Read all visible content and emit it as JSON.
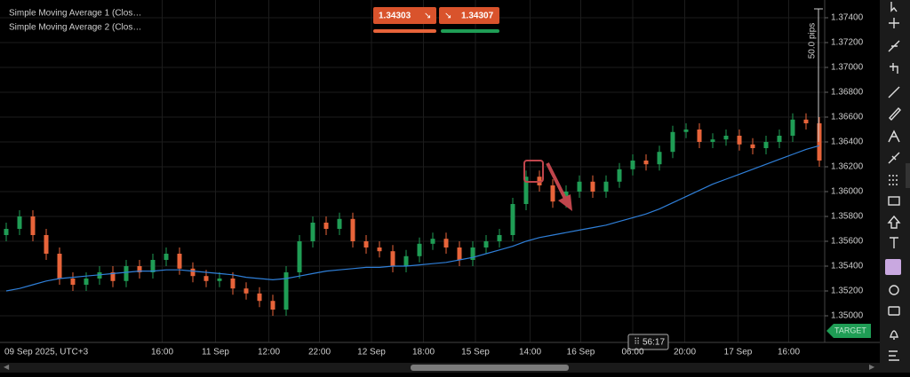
{
  "toolbar": {
    "sell_price": "1.34303",
    "buy_price": "1.34307"
  },
  "ruler_label": "50.0 pips",
  "timer": "56:17",
  "target_label": "TARGET",
  "chart_data": {
    "type": "candlestick",
    "legend": [
      "Simple Moving Average 1 (Clos…",
      "Simple Moving Average 2 (Clos…"
    ],
    "x_start_label": "09 Sep 2025, UTC+3",
    "up_color": "#1f9d55",
    "down_color": "#e8643a",
    "open": [
      1.3565,
      1.357,
      1.358,
      1.3565,
      1.355,
      1.353,
      1.3525,
      1.353,
      1.3535,
      1.3528,
      1.354,
      1.3535,
      1.3545,
      1.355,
      1.3538,
      1.3532,
      1.3528,
      1.353,
      1.3522,
      1.3518,
      1.3512,
      1.3505,
      1.3535,
      1.356,
      1.3575,
      1.357,
      1.3578,
      1.356,
      1.3555,
      1.3552,
      1.354,
      1.3548,
      1.3558,
      1.3562,
      1.3555,
      1.3545,
      1.3555,
      1.356,
      1.3565,
      1.359,
      1.3612,
      1.3605,
      1.3592,
      1.36,
      1.3608,
      1.36,
      1.3608,
      1.3618,
      1.3625,
      1.3622,
      1.3632,
      1.3648,
      1.365,
      1.364,
      1.3642,
      1.3645,
      1.3638,
      1.3635,
      1.364,
      1.3645,
      1.3658,
      1.3655
    ],
    "high": [
      1.3575,
      1.3585,
      1.3585,
      1.357,
      1.3555,
      1.3535,
      1.3535,
      1.354,
      1.354,
      1.3545,
      1.3545,
      1.355,
      1.3555,
      1.3555,
      1.3543,
      1.3537,
      1.3535,
      1.3535,
      1.3527,
      1.3523,
      1.3517,
      1.354,
      1.3565,
      1.358,
      1.358,
      1.3583,
      1.3583,
      1.3565,
      1.356,
      1.3557,
      1.3553,
      1.3563,
      1.3567,
      1.3567,
      1.356,
      1.356,
      1.3565,
      1.357,
      1.3595,
      1.3617,
      1.3617,
      1.361,
      1.3605,
      1.3613,
      1.3613,
      1.3613,
      1.3623,
      1.363,
      1.363,
      1.3637,
      1.3653,
      1.3655,
      1.3655,
      1.3647,
      1.365,
      1.365,
      1.3643,
      1.3645,
      1.365,
      1.3663,
      1.3663,
      1.366
    ],
    "low": [
      1.356,
      1.3565,
      1.356,
      1.3545,
      1.3525,
      1.352,
      1.352,
      1.3525,
      1.3523,
      1.3523,
      1.353,
      1.353,
      1.354,
      1.3533,
      1.3527,
      1.3523,
      1.3523,
      1.3517,
      1.3513,
      1.3507,
      1.35,
      1.35,
      1.353,
      1.3555,
      1.3565,
      1.3565,
      1.3555,
      1.355,
      1.3547,
      1.3535,
      1.3535,
      1.3543,
      1.3553,
      1.355,
      1.354,
      1.354,
      1.355,
      1.3555,
      1.356,
      1.3585,
      1.36,
      1.3587,
      1.3587,
      1.3595,
      1.3595,
      1.3595,
      1.3603,
      1.3613,
      1.3617,
      1.3617,
      1.3627,
      1.3643,
      1.3635,
      1.3635,
      1.3637,
      1.3633,
      1.363,
      1.363,
      1.3635,
      1.364,
      1.365,
      1.362
    ],
    "close": [
      1.357,
      1.358,
      1.3565,
      1.355,
      1.353,
      1.3525,
      1.353,
      1.3535,
      1.3528,
      1.354,
      1.3535,
      1.3545,
      1.355,
      1.3538,
      1.3532,
      1.3528,
      1.353,
      1.3522,
      1.3518,
      1.3512,
      1.3505,
      1.3535,
      1.356,
      1.3575,
      1.357,
      1.3578,
      1.356,
      1.3555,
      1.3552,
      1.354,
      1.3548,
      1.3558,
      1.3562,
      1.3555,
      1.3545,
      1.3555,
      1.356,
      1.3565,
      1.359,
      1.3612,
      1.3605,
      1.3592,
      1.36,
      1.3608,
      1.36,
      1.3608,
      1.3618,
      1.3625,
      1.3622,
      1.3632,
      1.3648,
      1.365,
      1.364,
      1.3642,
      1.3645,
      1.3638,
      1.3635,
      1.364,
      1.3645,
      1.3658,
      1.3655,
      1.3625
    ],
    "series": [
      {
        "color": "#2f7fd8",
        "values": [
          1.352,
          1.3522,
          1.3525,
          1.3528,
          1.353,
          1.3531,
          1.3532,
          1.3533,
          1.3534,
          1.3535,
          1.3536,
          1.3536,
          1.3537,
          1.3537,
          1.3536,
          1.3535,
          1.3534,
          1.3533,
          1.3531,
          1.353,
          1.3529,
          1.353,
          1.3532,
          1.3534,
          1.3536,
          1.3537,
          1.3538,
          1.3539,
          1.3539,
          1.354,
          1.354,
          1.3541,
          1.3542,
          1.3543,
          1.3545,
          1.3547,
          1.355,
          1.3553,
          1.3556,
          1.356,
          1.3563,
          1.3565,
          1.3567,
          1.3569,
          1.3571,
          1.3573,
          1.3576,
          1.3579,
          1.3582,
          1.3586,
          1.3591,
          1.3596,
          1.3601,
          1.3606,
          1.361,
          1.3614,
          1.3618,
          1.3622,
          1.3626,
          1.363,
          1.3634,
          1.3637
        ]
      }
    ],
    "ylim": [
      1.349,
      1.375
    ],
    "yticks": [
      {
        "value": 1.35,
        "label": "1.35000"
      },
      {
        "value": 1.352,
        "label": "1.35200"
      },
      {
        "value": 1.354,
        "label": "1.35400"
      },
      {
        "value": 1.356,
        "label": "1.35600"
      },
      {
        "value": 1.358,
        "label": "1.35800"
      },
      {
        "value": 1.36,
        "label": "1.36000"
      },
      {
        "value": 1.362,
        "label": "1.36200"
      },
      {
        "value": 1.364,
        "label": "1.36400"
      },
      {
        "value": 1.366,
        "label": "1.36600"
      },
      {
        "value": 1.368,
        "label": "1.36800"
      },
      {
        "value": 1.37,
        "label": "1.37000"
      },
      {
        "value": 1.372,
        "label": "1.37200"
      },
      {
        "value": 1.374,
        "label": "1.37400"
      }
    ],
    "xticks": [
      {
        "value": 11.7,
        "label": "16:00"
      },
      {
        "value": 15.7,
        "label": "11 Sep"
      },
      {
        "value": 19.7,
        "label": "12:00"
      },
      {
        "value": 23.5,
        "label": "22:00"
      },
      {
        "value": 27.4,
        "label": "12 Sep"
      },
      {
        "value": 31.3,
        "label": "18:00"
      },
      {
        "value": 35.2,
        "label": "15 Sep"
      },
      {
        "value": 39.3,
        "label": "14:00"
      },
      {
        "value": 43.1,
        "label": "16 Sep"
      },
      {
        "value": 47,
        "label": "06:00"
      },
      {
        "value": 50.9,
        "label": "20:00"
      },
      {
        "value": 54.9,
        "label": "17 Sep"
      },
      {
        "value": 58.7,
        "label": "16:00"
      }
    ],
    "grid": true
  }
}
